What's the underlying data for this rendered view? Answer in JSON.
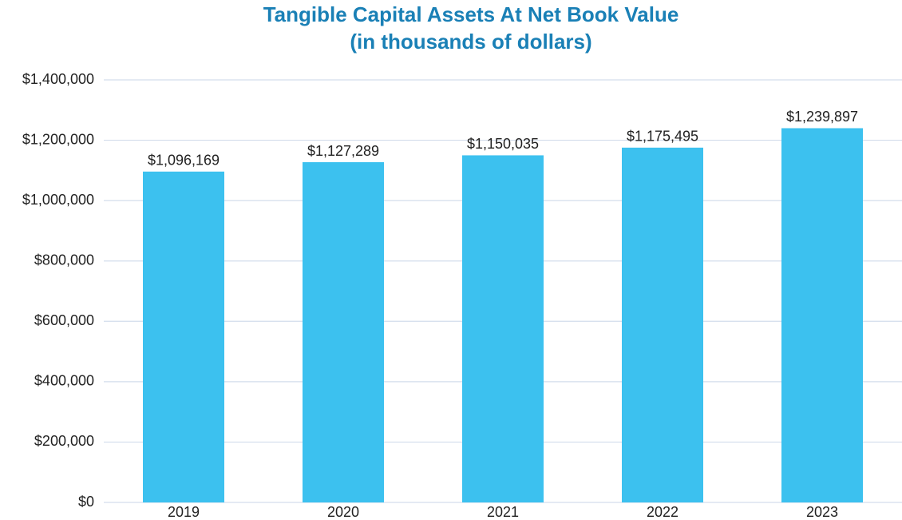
{
  "chart_data": {
    "type": "bar",
    "title": "Tangible Capital Assets At Net Book Value",
    "subtitle": "(in thousands of dollars)",
    "categories": [
      "2019",
      "2020",
      "2021",
      "2022",
      "2023"
    ],
    "values": [
      1096169,
      1127289,
      1150035,
      1175495,
      1239897
    ],
    "value_labels": [
      "$1,096,169",
      "$1,127,289",
      "$1,150,035",
      "$1,175,495",
      "$1,239,897"
    ],
    "color": "#3cc1ef",
    "ylim": [
      0,
      1400000
    ],
    "yticks": [
      {
        "value": 0,
        "label": "$0"
      },
      {
        "value": 200000,
        "label": "$200,000"
      },
      {
        "value": 400000,
        "label": "$400,000"
      },
      {
        "value": 600000,
        "label": "$600,000"
      },
      {
        "value": 800000,
        "label": "$800,000"
      },
      {
        "value": 1000000,
        "label": "$1,000,000"
      },
      {
        "value": 1200000,
        "label": "$1,200,000"
      },
      {
        "value": 1400000,
        "label": "$1,400,000"
      }
    ],
    "grid": true
  }
}
